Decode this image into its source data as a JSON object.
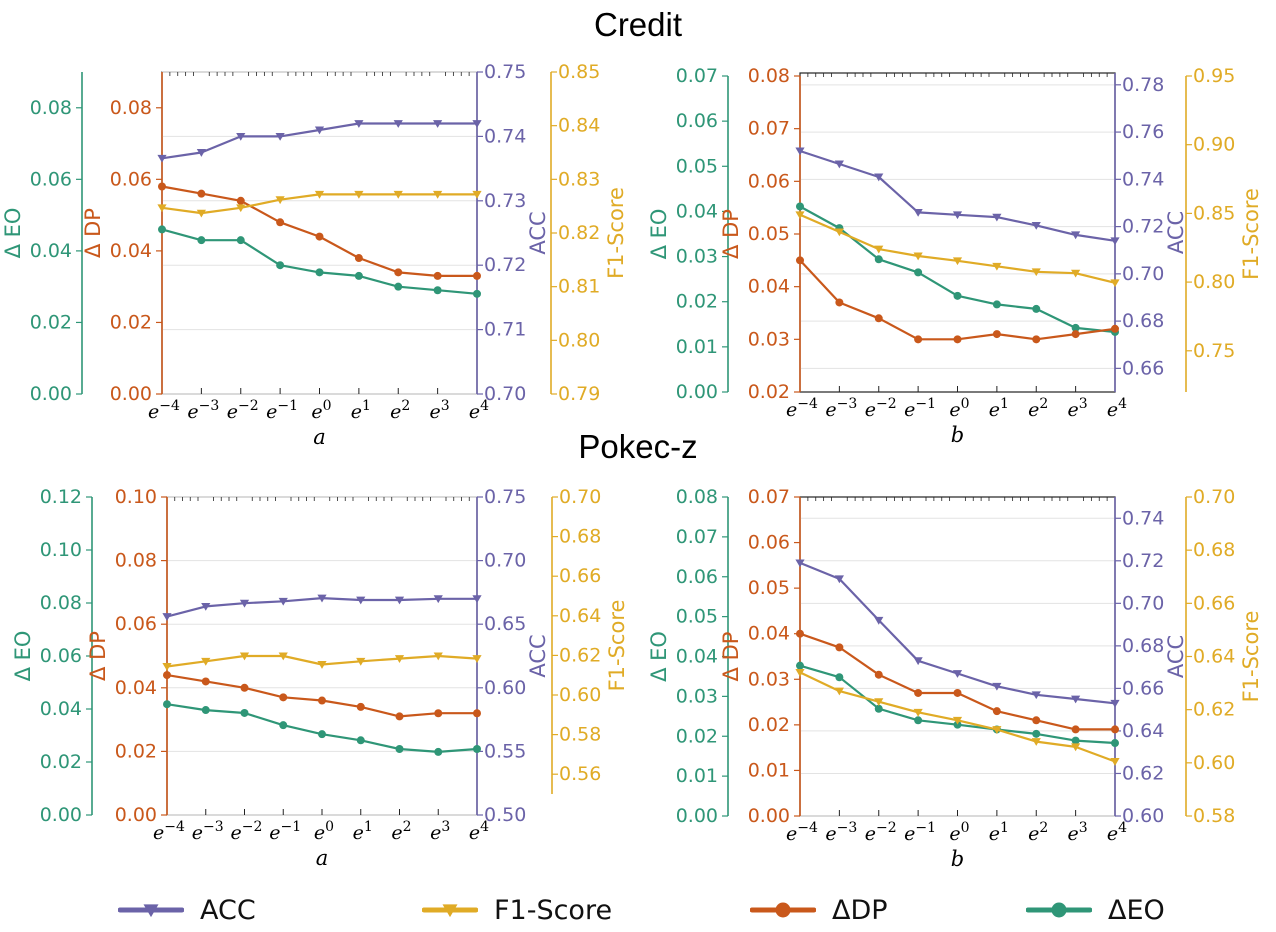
{
  "colors": {
    "acc": "#6b63a8",
    "f1": "#e0ab26",
    "dp": "#c9581b",
    "eo": "#2f9677"
  },
  "titles": {
    "credit": "Credit",
    "pokec": "Pokec-z"
  },
  "axis_labels": {
    "eo": "Δ EO",
    "dp": "Δ DP",
    "acc": "ACC",
    "f1": "F1-Score"
  },
  "x_ticks": [
    "-4",
    "-3",
    "-2",
    "-1",
    "0",
    "1",
    "2",
    "3",
    "4"
  ],
  "legend": [
    {
      "key": "acc",
      "label": "ACC",
      "marker": "tri"
    },
    {
      "key": "f1",
      "label": "F1-Score",
      "marker": "tri"
    },
    {
      "key": "dp",
      "label": "ΔDP",
      "marker": "circle"
    },
    {
      "key": "eo",
      "label": "ΔEO",
      "marker": "circle"
    }
  ],
  "chart_data": [
    {
      "type": "line",
      "dataset": "Credit",
      "xlabel": "a",
      "x": [
        "e^-4",
        "e^-3",
        "e^-2",
        "e^-1",
        "e^0",
        "e^1",
        "e^2",
        "e^3",
        "e^4"
      ],
      "axes": {
        "eo": {
          "label": "Δ EO",
          "ylim": [
            0,
            0.09
          ],
          "ticks": [
            0.0,
            0.02,
            0.04,
            0.06,
            0.08
          ],
          "decimals": 2
        },
        "dp": {
          "label": "Δ DP",
          "ylim": [
            0,
            0.09
          ],
          "ticks": [
            0.0,
            0.02,
            0.04,
            0.06,
            0.08
          ],
          "decimals": 2
        },
        "acc": {
          "label": "ACC",
          "ylim": [
            0.7,
            0.75
          ],
          "ticks": [
            0.7,
            0.71,
            0.72,
            0.73,
            0.74,
            0.75
          ],
          "decimals": 2
        },
        "f1": {
          "label": "F1-Score",
          "ylim": [
            0.79,
            0.85
          ],
          "ticks": [
            0.79,
            0.8,
            0.81,
            0.82,
            0.83,
            0.84,
            0.85
          ],
          "decimals": 2
        }
      },
      "series": [
        {
          "name": "ACC",
          "axis": "acc",
          "values": [
            0.7366,
            0.7375,
            0.74,
            0.74,
            0.741,
            0.742,
            0.742,
            0.742,
            0.742
          ]
        },
        {
          "name": "F1-Score",
          "axis": "f1",
          "values": [
            0.8247,
            0.8237,
            0.8247,
            0.8262,
            0.8272,
            0.8272,
            0.8272,
            0.8272,
            0.8272
          ]
        },
        {
          "name": "ΔDP",
          "axis": "dp",
          "values": [
            0.058,
            0.056,
            0.054,
            0.048,
            0.044,
            0.038,
            0.034,
            0.033,
            0.033
          ]
        },
        {
          "name": "ΔEO",
          "axis": "eo",
          "values": [
            0.046,
            0.043,
            0.043,
            0.036,
            0.034,
            0.033,
            0.03,
            0.029,
            0.028
          ]
        }
      ]
    },
    {
      "type": "line",
      "dataset": "Credit",
      "xlabel": "b",
      "x": [
        "e^-4",
        "e^-3",
        "e^-2",
        "e^-1",
        "e^0",
        "e^1",
        "e^2",
        "e^3",
        "e^4"
      ],
      "axes": {
        "eo": {
          "label": "Δ EO",
          "ylim": [
            0,
            0.07
          ],
          "ticks": [
            0.0,
            0.01,
            0.02,
            0.03,
            0.04,
            0.05,
            0.06,
            0.07
          ],
          "decimals": 2
        },
        "dp": {
          "label": "Δ DP",
          "ylim": [
            0.02,
            0.08
          ],
          "ticks": [
            0.02,
            0.03,
            0.04,
            0.05,
            0.06,
            0.07,
            0.08
          ],
          "decimals": 2
        },
        "acc": {
          "label": "ACC",
          "ylim": [
            0.65,
            0.785
          ],
          "ticks": [
            0.66,
            0.68,
            0.7,
            0.72,
            0.74,
            0.76,
            0.78
          ],
          "decimals": 2
        },
        "f1": {
          "label": "F1-Score",
          "ylim": [
            0.72,
            0.95
          ],
          "ticks": [
            0.75,
            0.8,
            0.85,
            0.9,
            0.95
          ],
          "decimals": 2
        }
      },
      "series": [
        {
          "name": "ACC",
          "axis": "acc",
          "values": [
            0.752,
            0.7465,
            0.741,
            0.726,
            0.725,
            0.724,
            0.7205,
            0.7165,
            0.714
          ]
        },
        {
          "name": "F1-Score",
          "axis": "f1",
          "values": [
            0.849,
            0.8365,
            0.824,
            0.819,
            0.8155,
            0.8115,
            0.8075,
            0.8065,
            0.7995
          ]
        },
        {
          "name": "ΔDP",
          "axis": "dp",
          "values": [
            0.045,
            0.037,
            0.034,
            0.03,
            0.03,
            0.031,
            0.03,
            0.031,
            0.032
          ]
        },
        {
          "name": "ΔEO",
          "axis": "eo",
          "values": [
            0.0411,
            0.0363,
            0.0294,
            0.0265,
            0.0213,
            0.0194,
            0.0184,
            0.0142,
            0.0133
          ]
        }
      ]
    },
    {
      "type": "line",
      "dataset": "Pokec-z",
      "xlabel": "a",
      "x": [
        "e^-4",
        "e^-3",
        "e^-2",
        "e^-1",
        "e^0",
        "e^1",
        "e^2",
        "e^3",
        "e^4"
      ],
      "axes": {
        "eo": {
          "label": "Δ EO",
          "ylim": [
            0,
            0.12
          ],
          "ticks": [
            0.0,
            0.02,
            0.04,
            0.06,
            0.08,
            0.1,
            0.12
          ],
          "decimals": 2
        },
        "dp": {
          "label": "Δ DP",
          "ylim": [
            0,
            0.1
          ],
          "ticks": [
            0.0,
            0.02,
            0.04,
            0.06,
            0.08,
            0.1
          ],
          "decimals": 2
        },
        "acc": {
          "label": "ACC",
          "ylim": [
            0.5,
            0.75
          ],
          "ticks": [
            0.5,
            0.55,
            0.6,
            0.65,
            0.7,
            0.75
          ],
          "decimals": 2
        },
        "f1": {
          "label": "F1-Score",
          "ylim": [
            0.55,
            0.7
          ],
          "ticks": [
            0.56,
            0.58,
            0.6,
            0.62,
            0.64,
            0.66,
            0.68,
            0.7
          ],
          "decimals": 2
        }
      },
      "series": [
        {
          "name": "ACC",
          "axis": "acc",
          "values": [
            0.656,
            0.664,
            0.6665,
            0.668,
            0.6705,
            0.669,
            0.669,
            0.67,
            0.67
          ]
        },
        {
          "name": "F1-Score",
          "axis": "f1",
          "values": [
            0.6144,
            0.617,
            0.6197,
            0.6197,
            0.6154,
            0.617,
            0.6184,
            0.6197,
            0.6184
          ]
        },
        {
          "name": "ΔDP",
          "axis": "dp",
          "values": [
            0.044,
            0.042,
            0.04,
            0.037,
            0.036,
            0.034,
            0.031,
            0.032,
            0.032
          ]
        },
        {
          "name": "ΔEO",
          "axis": "eo",
          "values": [
            0.0418,
            0.0396,
            0.0385,
            0.0339,
            0.0305,
            0.0282,
            0.0249,
            0.0238,
            0.0249
          ]
        }
      ]
    },
    {
      "type": "line",
      "dataset": "Pokec-z",
      "xlabel": "b",
      "x": [
        "e^-4",
        "e^-3",
        "e^-2",
        "e^-1",
        "e^0",
        "e^1",
        "e^2",
        "e^3",
        "e^4"
      ],
      "axes": {
        "eo": {
          "label": "Δ EO",
          "ylim": [
            0,
            0.08
          ],
          "ticks": [
            0.0,
            0.01,
            0.02,
            0.03,
            0.04,
            0.05,
            0.06,
            0.07,
            0.08
          ],
          "decimals": 2
        },
        "dp": {
          "label": "Δ DP",
          "ylim": [
            0,
            0.07
          ],
          "ticks": [
            0.0,
            0.01,
            0.02,
            0.03,
            0.04,
            0.05,
            0.06,
            0.07
          ],
          "decimals": 2
        },
        "acc": {
          "label": "ACC",
          "ylim": [
            0.6,
            0.75
          ],
          "ticks": [
            0.6,
            0.62,
            0.64,
            0.66,
            0.68,
            0.7,
            0.72,
            0.74
          ],
          "decimals": 2
        },
        "f1": {
          "label": "F1-Score",
          "ylim": [
            0.58,
            0.7
          ],
          "ticks": [
            0.58,
            0.6,
            0.62,
            0.64,
            0.66,
            0.68,
            0.7
          ],
          "decimals": 2
        }
      },
      "series": [
        {
          "name": "ACC",
          "axis": "acc",
          "values": [
            0.719,
            0.7115,
            0.692,
            0.673,
            0.667,
            0.661,
            0.657,
            0.655,
            0.653
          ]
        },
        {
          "name": "F1-Score",
          "axis": "f1",
          "values": [
            0.634,
            0.627,
            0.623,
            0.619,
            0.616,
            0.6125,
            0.608,
            0.606,
            0.6005
          ]
        },
        {
          "name": "ΔDP",
          "axis": "dp",
          "values": [
            0.04,
            0.037,
            0.031,
            0.027,
            0.027,
            0.023,
            0.021,
            0.019,
            0.019
          ]
        },
        {
          "name": "ΔEO",
          "axis": "eo",
          "values": [
            0.0377,
            0.0348,
            0.0269,
            0.024,
            0.0229,
            0.0217,
            0.0206,
            0.0189,
            0.0183
          ]
        }
      ]
    }
  ]
}
